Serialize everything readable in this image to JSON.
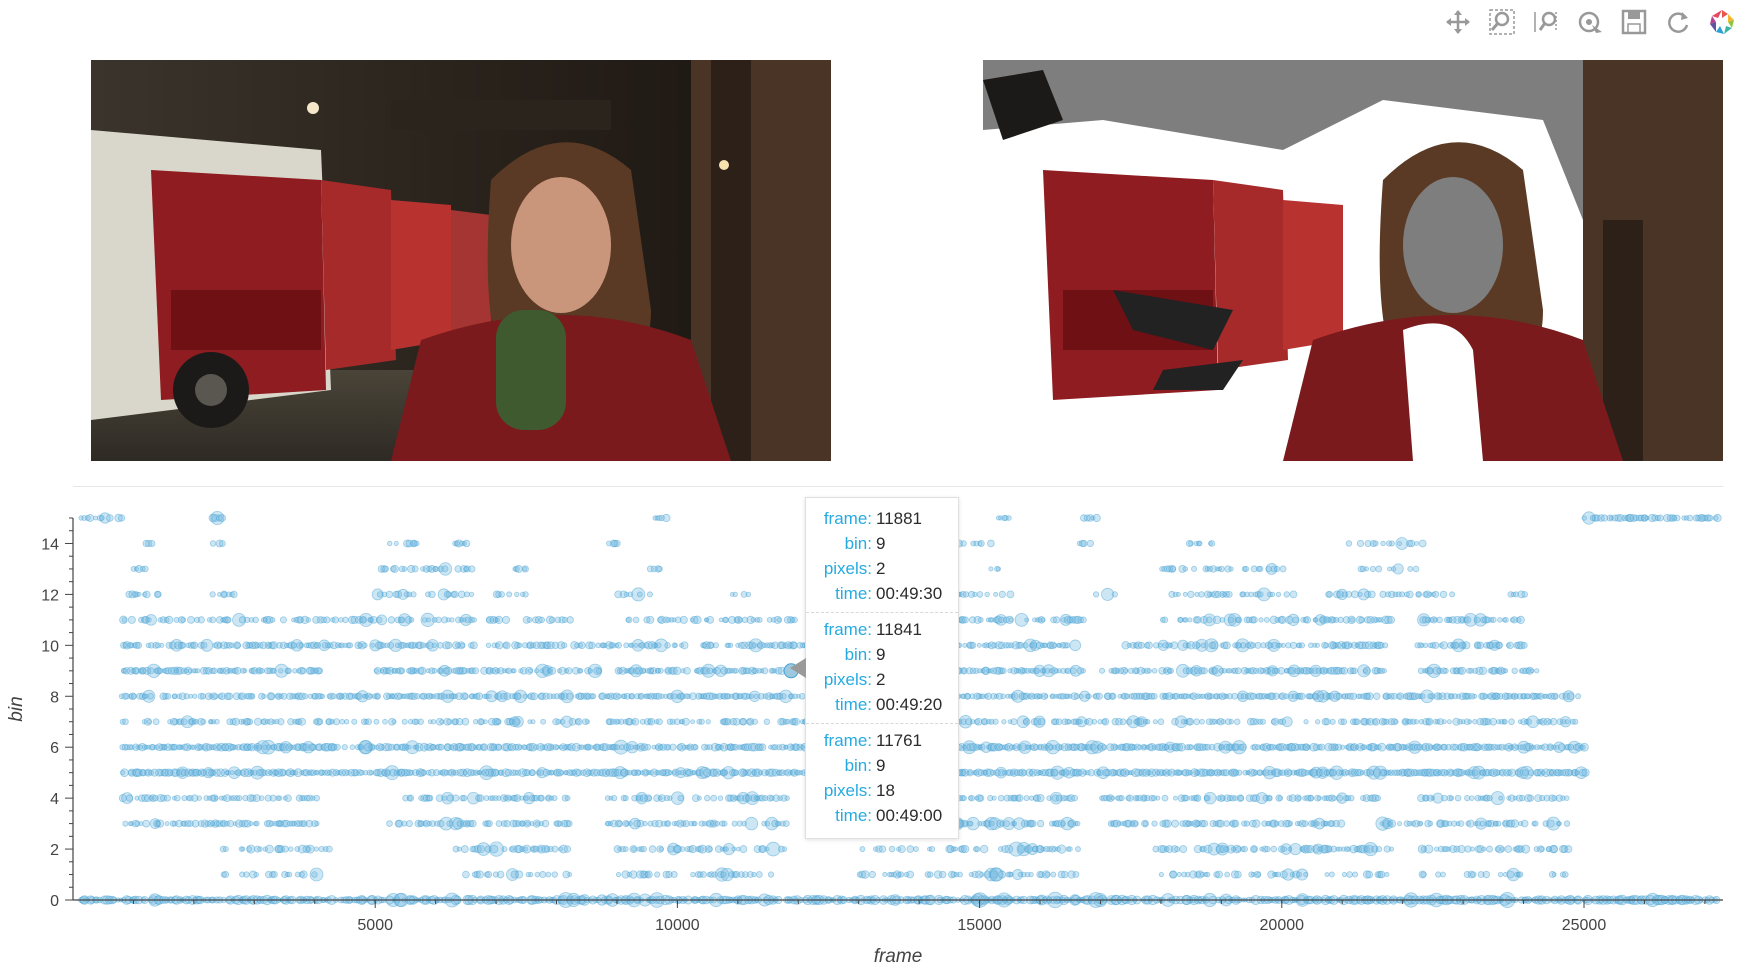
{
  "toolbar": {
    "tools": [
      {
        "name": "pan-tool",
        "icon": "pan-icon"
      },
      {
        "name": "box-zoom-tool",
        "icon": "box-zoom-icon"
      },
      {
        "name": "wheel-zoom-tool",
        "icon": "wheel-zoom-icon"
      },
      {
        "name": "hover-tool",
        "icon": "hover-icon"
      },
      {
        "name": "save-tool",
        "icon": "save-icon"
      },
      {
        "name": "reset-tool",
        "icon": "reset-icon"
      },
      {
        "name": "bokeh-logo",
        "icon": "bokeh-logo-icon"
      }
    ]
  },
  "tooltip": {
    "entries": [
      {
        "frame": "11881",
        "bin": "9",
        "pixels": "2",
        "time": "00:49:30"
      },
      {
        "frame": "11841",
        "bin": "9",
        "pixels": "2",
        "time": "00:49:20"
      },
      {
        "frame": "11761",
        "bin": "9",
        "pixels": "18",
        "time": "00:49:00"
      }
    ],
    "labels": {
      "frame": "frame:",
      "bin": "bin:",
      "pixels": "pixels:",
      "time": "time:"
    }
  },
  "colors": {
    "point": "#6fb8e0",
    "point_stroke": "#4aa3d4",
    "tooltip_key": "#26aae1"
  },
  "chart_data": {
    "type": "scatter",
    "title": "",
    "xlabel": "frame",
    "ylabel": "bin",
    "xlim": [
      0,
      27300
    ],
    "ylim": [
      0,
      15
    ],
    "xticks": [
      5000,
      10000,
      15000,
      20000,
      25000
    ],
    "yticks": [
      0,
      2,
      4,
      6,
      8,
      10,
      12,
      14
    ],
    "grid": false,
    "size_encodes": "pixels",
    "series": [
      {
        "bins": [
          {
            "bin": 0,
            "segments": [
              [
                100,
                27200
              ]
            ],
            "density": 0.9,
            "size": 0.7
          },
          {
            "bin": 1,
            "segments": [
              [
                2400,
                4000
              ],
              [
                6300,
                8200
              ],
              [
                9000,
                11600
              ],
              [
                13000,
                16600
              ],
              [
                18000,
                21800
              ],
              [
                22300,
                24800
              ]
            ],
            "density": 0.45,
            "size": 0.45
          },
          {
            "bin": 2,
            "segments": [
              [
                2400,
                4200
              ],
              [
                6300,
                8200
              ],
              [
                9000,
                11800
              ],
              [
                13000,
                16600
              ],
              [
                17900,
                21800
              ],
              [
                22300,
                24800
              ]
            ],
            "density": 0.6,
            "size": 0.55
          },
          {
            "bin": 3,
            "segments": [
              [
                800,
                4000
              ],
              [
                5200,
                6600
              ],
              [
                6800,
                8200
              ],
              [
                8800,
                11800
              ],
              [
                12400,
                16600
              ],
              [
                17100,
                21000
              ],
              [
                21500,
                24700
              ]
            ],
            "density": 0.7,
            "size": 0.45
          },
          {
            "bin": 4,
            "segments": [
              [
                800,
                4000
              ],
              [
                5500,
                8200
              ],
              [
                8800,
                11800
              ],
              [
                12500,
                16600
              ],
              [
                17000,
                21700
              ],
              [
                22300,
                24700
              ]
            ],
            "density": 0.6,
            "size": 0.4
          },
          {
            "bin": 5,
            "segments": [
              [
                800,
                25000
              ]
            ],
            "density": 0.95,
            "size": 0.5
          },
          {
            "bin": 6,
            "segments": [
              [
                800,
                25000
              ]
            ],
            "density": 0.9,
            "size": 0.5
          },
          {
            "bin": 7,
            "segments": [
              [
                800,
                24900
              ]
            ],
            "density": 0.55,
            "size": 0.4
          },
          {
            "bin": 8,
            "segments": [
              [
                800,
                24900
              ]
            ],
            "density": 0.8,
            "size": 0.4
          },
          {
            "bin": 9,
            "segments": [
              [
                800,
                4100
              ],
              [
                5000,
                6700
              ],
              [
                6800,
                8700
              ],
              [
                9000,
                12200
              ],
              [
                13500,
                16700
              ],
              [
                17000,
                21700
              ],
              [
                22300,
                24200
              ]
            ],
            "density": 0.8,
            "size": 0.45
          },
          {
            "bin": 10,
            "segments": [
              [
                800,
                6600
              ],
              [
                6800,
                10100
              ],
              [
                10400,
                13700
              ],
              [
                14200,
                16600
              ],
              [
                17400,
                21700
              ],
              [
                22200,
                24000
              ]
            ],
            "density": 0.75,
            "size": 0.45
          },
          {
            "bin": 11,
            "segments": [
              [
                800,
                6600
              ],
              [
                6800,
                8200
              ],
              [
                9000,
                12200
              ],
              [
                14200,
                16700
              ],
              [
                18000,
                21800
              ],
              [
                22300,
                24000
              ]
            ],
            "density": 0.55,
            "size": 0.45
          },
          {
            "bin": 12,
            "segments": [
              [
                800,
                1400
              ],
              [
                2300,
                2700
              ],
              [
                5000,
                6600
              ],
              [
                7000,
                7500
              ],
              [
                9000,
                9600
              ],
              [
                10800,
                11300
              ],
              [
                13500,
                15500
              ],
              [
                16800,
                17300
              ],
              [
                18000,
                20200
              ],
              [
                20700,
                22800
              ],
              [
                23700,
                24000
              ]
            ],
            "density": 0.55,
            "size": 0.4
          },
          {
            "bin": 13,
            "segments": [
              [
                1000,
                1200
              ],
              [
                5000,
                6600
              ],
              [
                7200,
                7500
              ],
              [
                9500,
                9700
              ],
              [
                15100,
                15300
              ],
              [
                18000,
                20000
              ],
              [
                21300,
                22300
              ]
            ],
            "density": 0.5,
            "size": 0.4
          },
          {
            "bin": 14,
            "segments": [
              [
                1100,
                1300
              ],
              [
                2300,
                2500
              ],
              [
                5200,
                5700
              ],
              [
                6300,
                6500
              ],
              [
                8800,
                9000
              ],
              [
                14300,
                15300
              ],
              [
                16600,
                16800
              ],
              [
                18400,
                19000
              ],
              [
                21100,
                22300
              ]
            ],
            "density": 0.5,
            "size": 0.4
          },
          {
            "bin": 15,
            "segments": [
              [
                100,
                900
              ],
              [
                2300,
                2500
              ],
              [
                9600,
                9800
              ],
              [
                12700,
                12900
              ],
              [
                15300,
                15500
              ],
              [
                16700,
                16900
              ],
              [
                25000,
                27200
              ]
            ],
            "density": 0.7,
            "size": 0.45
          }
        ]
      }
    ],
    "highlight": {
      "frame": 11881,
      "bin": 9
    }
  }
}
